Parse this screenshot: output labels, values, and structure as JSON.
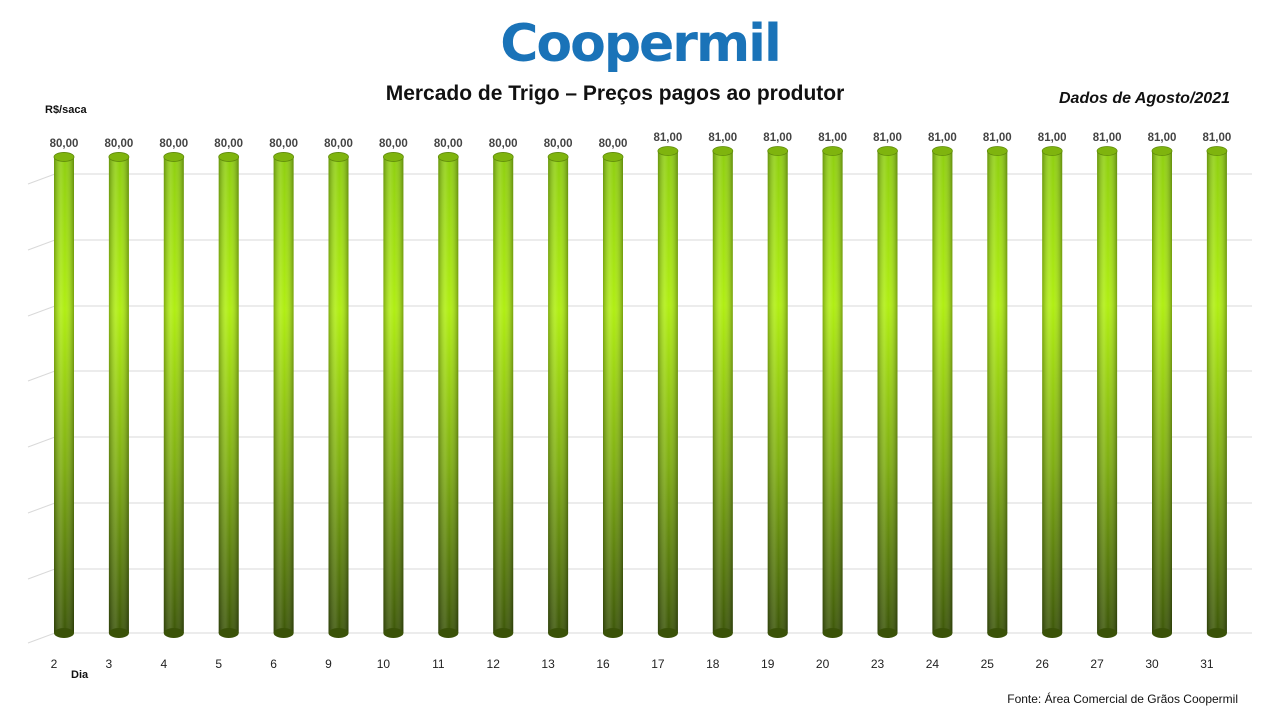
{
  "header": {
    "logo_text": "Coopermil",
    "title": "Mercado de Trigo – Preços pagos ao produtor",
    "subtitle": "Dados de Agosto/2021",
    "source": "Fonte:  Área Comercial de Grãos Coopermil"
  },
  "colors": {
    "brand": "#1a73b8",
    "bar_light": "#a8e61a",
    "bar_dark": "#3f5a0a",
    "grid": "#d9d9d9"
  },
  "chart_data": {
    "type": "bar",
    "title": "Mercado de Trigo – Preços pagos ao produtor",
    "subtitle": "Dados de Agosto/2021",
    "xlabel": "Dia",
    "ylabel": "R$/saca",
    "categories": [
      "2",
      "3",
      "4",
      "5",
      "6",
      "9",
      "10",
      "11",
      "12",
      "13",
      "16",
      "17",
      "18",
      "19",
      "20",
      "23",
      "24",
      "25",
      "26",
      "27",
      "30",
      "31"
    ],
    "values": [
      80,
      80,
      80,
      80,
      80,
      80,
      80,
      80,
      80,
      80,
      80,
      81,
      81,
      81,
      81,
      81,
      81,
      81,
      81,
      81,
      81,
      81
    ],
    "data_labels": [
      "80,00",
      "80,00",
      "80,00",
      "80,00",
      "80,00",
      "80,00",
      "80,00",
      "80,00",
      "80,00",
      "80,00",
      "80,00",
      "81,00",
      "81,00",
      "81,00",
      "81,00",
      "81,00",
      "81,00",
      "81,00",
      "81,00",
      "81,00",
      "81,00",
      "81,00"
    ],
    "grid": true,
    "legend": "none"
  }
}
